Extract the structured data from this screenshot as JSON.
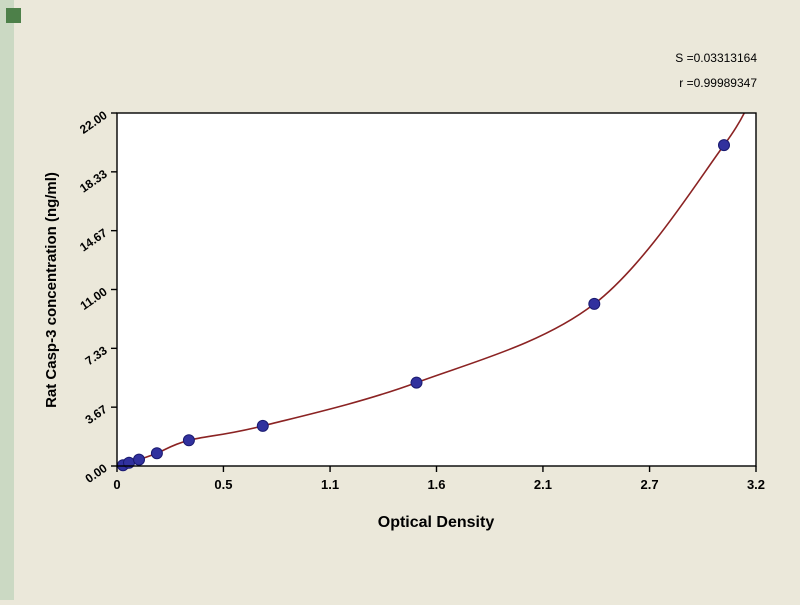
{
  "window": {
    "background": "#ebe8da",
    "left_strip_color": "#cbd9c3",
    "corner_square_color": "#4d8049"
  },
  "chart_data": {
    "type": "scatter",
    "title": "",
    "xlabel": "Optical Density",
    "ylabel": "Rat Casp-3 concentration (ng/ml)",
    "xlim": [
      0,
      3.2
    ],
    "ylim": [
      0,
      22
    ],
    "grid": false,
    "legend": "none",
    "plot_background": "#ffffff",
    "frame_color": "#000000",
    "annotations": [
      "S =0.03313164",
      "r =0.99989347"
    ],
    "x_tick_values": [
      0,
      0.533,
      1.067,
      1.6,
      2.133,
      2.667,
      3.2
    ],
    "x_tick_labels": [
      "0",
      "0.5",
      "1.1",
      "1.6",
      "2.1",
      "2.7",
      "3.2"
    ],
    "y_tick_values": [
      0,
      3.667,
      7.333,
      11,
      14.667,
      18.333,
      22
    ],
    "y_tick_labels": [
      "0.00",
      "3.67",
      "7.33",
      "11.00",
      "14.67",
      "18.33",
      "22.00"
    ],
    "series": [
      {
        "name": "standard-points",
        "type": "scatter",
        "color": "#31319e",
        "edge_color": "#1a1a70",
        "x": [
          0.03,
          0.06,
          0.11,
          0.2,
          0.36,
          0.73,
          1.5,
          2.39,
          3.04
        ],
        "y": [
          0.05,
          0.2,
          0.4,
          0.8,
          1.6,
          2.5,
          5.2,
          10.1,
          20.0
        ]
      },
      {
        "name": "fit-curve",
        "type": "line",
        "color": "#8b2323",
        "x": [
          0.0,
          0.03,
          0.06,
          0.11,
          0.2,
          0.36,
          0.73,
          1.5,
          2.39,
          3.04,
          3.2
        ],
        "y": [
          0.0,
          0.05,
          0.2,
          0.4,
          0.8,
          1.6,
          2.5,
          5.2,
          10.1,
          20.0,
          23.8
        ]
      }
    ]
  }
}
